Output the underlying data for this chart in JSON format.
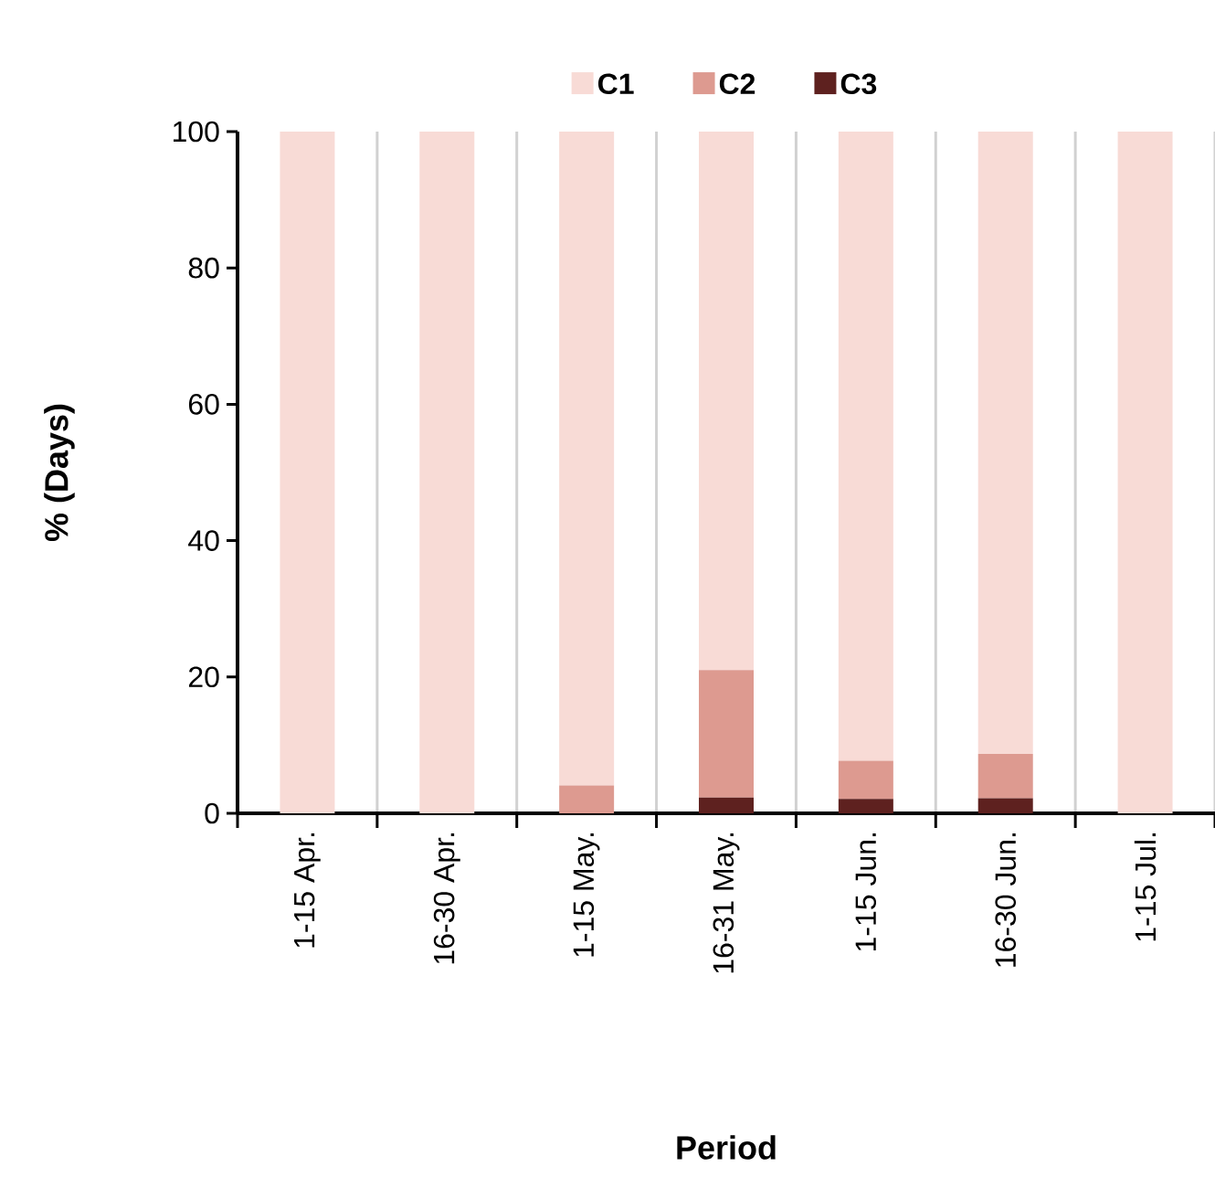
{
  "chart_data": {
    "type": "bar",
    "stacked": true,
    "xlabel": "Period",
    "ylabel": "% (Days)",
    "categories": [
      "1-15 Apr.",
      "16-30 Apr.",
      "1-15 May.",
      "16-31 May.",
      "1-15 Jun.",
      "16-30 Jun.",
      "1-15 Jul."
    ],
    "series": [
      {
        "name": "C3",
        "color": "#5e211f",
        "values": [
          0,
          0,
          0,
          2.3,
          2.1,
          2.2,
          0
        ]
      },
      {
        "name": "C2",
        "color": "#dd9a90",
        "values": [
          0,
          0,
          4.1,
          18.7,
          5.6,
          6.5,
          0
        ]
      },
      {
        "name": "C1",
        "color": "#f8dbd6",
        "values": [
          100,
          100,
          95.9,
          79.0,
          92.3,
          91.3,
          100
        ]
      }
    ],
    "ylim": [
      0,
      100
    ],
    "yticks": [
      0,
      20,
      40,
      60,
      80,
      100
    ],
    "grid": "x",
    "legend": "top"
  }
}
